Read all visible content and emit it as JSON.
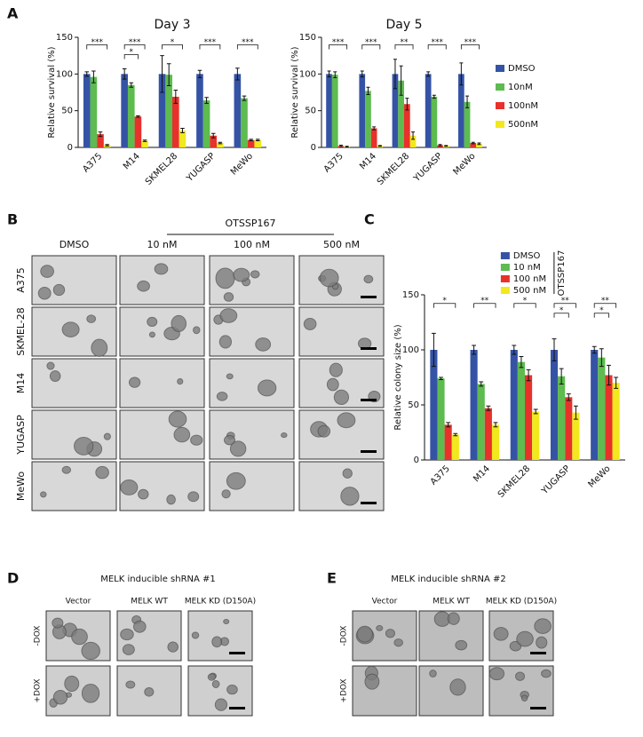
{
  "panel_a": {
    "label": "A"
  },
  "panel_c": {
    "label": "C"
  },
  "chart_data": [
    {
      "type": "bar",
      "title": "Day 3",
      "ylabel": "Relative survival (%)",
      "categories": [
        "A375",
        "M14",
        "SKMEL28",
        "YUGASP",
        "MeWo"
      ],
      "ylim": [
        0,
        150
      ],
      "yticks": [
        0,
        50,
        100,
        150
      ],
      "legend": "none",
      "series": [
        {
          "color": "#3553a5",
          "values": [
            100,
            100,
            100,
            100,
            100
          ],
          "errors": [
            3,
            7,
            25,
            5,
            8
          ]
        },
        {
          "color": "#5dbb4f",
          "values": [
            96,
            85,
            99,
            64,
            67
          ],
          "errors": [
            8,
            3,
            15,
            4,
            3
          ]
        },
        {
          "color": "#e8312a",
          "values": [
            18,
            42,
            69,
            16,
            10
          ],
          "errors": [
            3,
            1,
            9,
            3,
            1
          ]
        },
        {
          "color": "#f2e81e",
          "values": [
            3,
            9,
            23,
            6,
            10
          ],
          "errors": [
            1,
            1,
            3,
            1,
            1
          ]
        }
      ],
      "significance": [
        [
          "***"
        ],
        [
          "***",
          "*"
        ],
        [
          "*"
        ],
        [
          "***"
        ],
        [
          "***"
        ]
      ]
    },
    {
      "type": "bar",
      "title": "Day 5",
      "ylabel": "Relative survival (%)",
      "categories": [
        "A375",
        "M14",
        "SKMEL28",
        "YUGASP",
        "MeWo"
      ],
      "ylim": [
        0,
        150
      ],
      "yticks": [
        0,
        50,
        100,
        150
      ],
      "legend": "right",
      "series": [
        {
          "name": "DMSO",
          "color": "#3553a5",
          "values": [
            100,
            100,
            100,
            100,
            100
          ],
          "errors": [
            4,
            4,
            20,
            3,
            15
          ]
        },
        {
          "name": "10nM",
          "color": "#5dbb4f",
          "values": [
            99,
            77,
            91,
            69,
            62
          ],
          "errors": [
            4,
            5,
            20,
            2,
            8
          ]
        },
        {
          "name": "100nM",
          "color": "#e8312a",
          "values": [
            2,
            26,
            59,
            3,
            6
          ],
          "errors": [
            1,
            2,
            8,
            1,
            1
          ]
        },
        {
          "name": "500nM",
          "color": "#f2e81e",
          "values": [
            1,
            2,
            16,
            2,
            5
          ],
          "errors": [
            0.5,
            0.5,
            5,
            0.5,
            1
          ]
        }
      ],
      "significance": [
        [
          "***"
        ],
        [
          "***"
        ],
        [
          "**"
        ],
        [
          "***"
        ],
        [
          "***"
        ]
      ]
    },
    {
      "type": "bar",
      "ylabel": "Relative colony size  (%)",
      "categories": [
        "A375",
        "M14",
        "SKMEL28",
        "YUGASP",
        "MeWo"
      ],
      "ylim": [
        0,
        150
      ],
      "yticks": [
        0,
        50,
        100,
        150
      ],
      "legend": "top",
      "legend_title": "OTSSP167",
      "series": [
        {
          "name": "DMSO",
          "color": "#3553a5",
          "values": [
            100,
            100,
            100,
            100,
            100
          ],
          "errors": [
            15,
            4,
            4,
            10,
            3
          ]
        },
        {
          "name": "10 nM",
          "color": "#5dbb4f",
          "values": [
            74,
            69,
            89,
            76,
            93
          ],
          "errors": [
            1,
            2,
            5,
            7,
            8
          ]
        },
        {
          "name": "100 nM",
          "color": "#e8312a",
          "values": [
            32,
            47,
            77,
            57,
            77
          ],
          "errors": [
            2,
            2,
            5,
            3,
            9
          ]
        },
        {
          "name": "500 nM",
          "color": "#f2e81e",
          "values": [
            23,
            32,
            44,
            43,
            70
          ],
          "errors": [
            1,
            2,
            2,
            6,
            5
          ]
        }
      ],
      "significance": [
        [
          "*"
        ],
        [
          "**"
        ],
        [
          "*"
        ],
        [
          "**",
          "*"
        ],
        [
          "**",
          "*"
        ]
      ]
    }
  ],
  "panel_b": {
    "label": "B",
    "treatment": "OTSSP167",
    "columns": [
      "DMSO",
      "10 nM",
      "100 nM",
      "500 nM"
    ],
    "rows": [
      "A375",
      "SKMEL-28",
      "M14",
      "YUGASP",
      "MeWo"
    ]
  },
  "panel_d": {
    "label": "D",
    "title": "MELK inducible shRNA #1",
    "columns": [
      "Vector",
      "MELK WT",
      "MELK KD (D150A)"
    ],
    "rows": [
      "-DOX",
      "+DOX"
    ]
  },
  "panel_e": {
    "label": "E",
    "title": "MELK inducible shRNA #2",
    "columns": [
      "Vector",
      "MELK WT",
      "MELK KD (D150A)"
    ],
    "rows": [
      "-DOX",
      "+DOX"
    ]
  }
}
